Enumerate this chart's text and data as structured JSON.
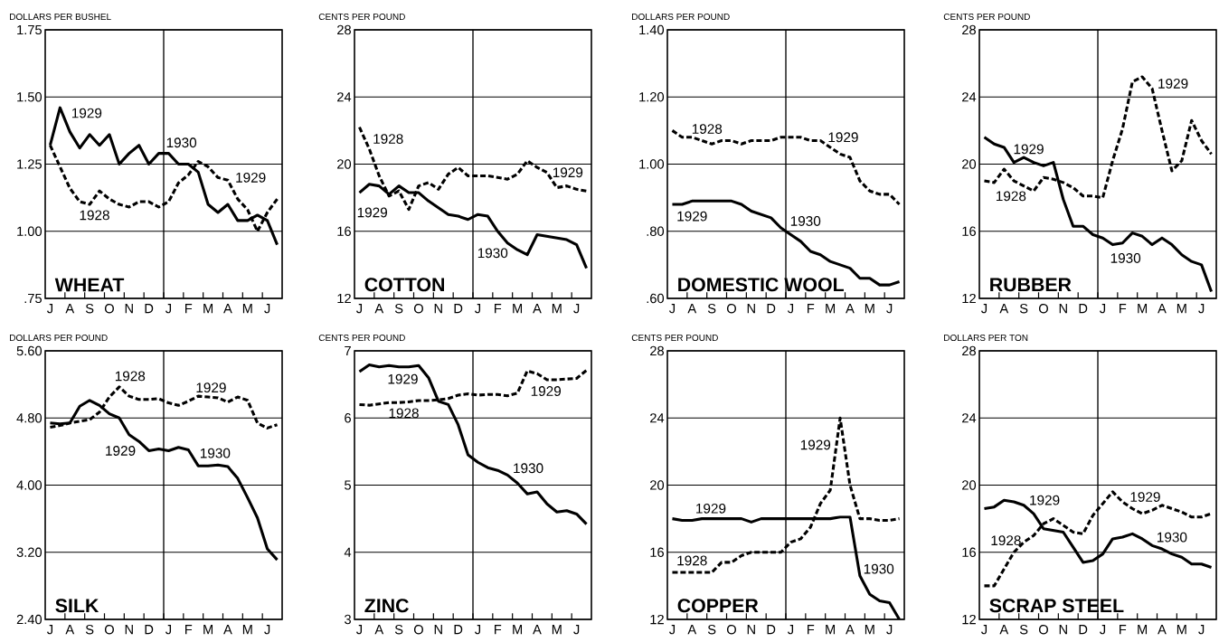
{
  "chart_data": [
    {
      "type": "line",
      "title": "WHEAT",
      "ylabel": "DOLLARS PER BUSHEL",
      "ylim": [
        0.75,
        1.75
      ],
      "grid": "y",
      "yticks": [
        {
          "value": 0.75,
          "label": ".75"
        },
        {
          "value": 1.0,
          "label": "1.00"
        },
        {
          "value": 1.25,
          "label": "1.25"
        },
        {
          "value": 1.5,
          "label": "1.50"
        },
        {
          "value": 1.75,
          "label": "1.75"
        }
      ],
      "categories": [
        "J",
        null,
        "A",
        null,
        "S",
        null,
        "O",
        null,
        "N",
        null,
        "D",
        null,
        "J",
        null,
        "F",
        null,
        "M",
        null,
        "A",
        null,
        "M",
        null,
        "J",
        null
      ],
      "series": [
        {
          "color": "#000000",
          "line_style": "solid",
          "values": [
            1.32,
            1.46,
            1.37,
            1.31,
            1.36,
            1.32,
            1.36,
            1.25,
            1.29,
            1.32,
            1.25,
            1.29,
            1.29,
            1.25,
            1.25,
            1.22,
            1.1,
            1.07,
            1.1,
            1.04,
            1.04,
            1.06,
            1.04,
            0.95
          ]
        },
        {
          "color": "#000000",
          "line_style": "dashed",
          "values": [
            1.32,
            1.24,
            1.16,
            1.11,
            1.1,
            1.15,
            1.12,
            1.1,
            1.09,
            1.11,
            1.11,
            1.09,
            1.11,
            1.18,
            1.21,
            1.26,
            1.24,
            1.2,
            1.19,
            1.12,
            1.08,
            1.0,
            1.07,
            1.12
          ]
        }
      ],
      "annotations": [
        "1929",
        "1930",
        "1929",
        "1928"
      ]
    },
    {
      "type": "line",
      "title": "COTTON",
      "ylabel": "CENTS PER POUND",
      "ylim": [
        12,
        28
      ],
      "grid": "y",
      "yticks": [
        12,
        16,
        20,
        24,
        28
      ],
      "categories": [
        "J",
        null,
        "A",
        null,
        "S",
        null,
        "O",
        null,
        "N",
        null,
        "D",
        null,
        "J",
        null,
        "F",
        null,
        "M",
        null,
        "A",
        null,
        "M",
        null,
        "J",
        null
      ],
      "series": [
        {
          "color": "#000000",
          "line_style": "solid",
          "values": [
            18.3,
            18.8,
            18.7,
            18.2,
            18.7,
            18.3,
            18.3,
            17.8,
            17.4,
            17.0,
            16.9,
            16.7,
            17.0,
            16.9,
            16.0,
            15.3,
            14.9,
            14.6,
            15.8,
            15.7,
            15.6,
            15.5,
            15.2,
            13.8
          ]
        },
        {
          "color": "#000000",
          "line_style": "dashed",
          "values": [
            22.2,
            20.9,
            19.3,
            18.1,
            18.4,
            17.3,
            18.7,
            18.9,
            18.5,
            19.4,
            19.8,
            19.3,
            19.3,
            19.3,
            19.2,
            19.1,
            19.4,
            20.2,
            19.8,
            19.5,
            18.6,
            18.7,
            18.5,
            18.4
          ]
        }
      ],
      "annotations": [
        "1928",
        "1929",
        "1930",
        "1929"
      ]
    },
    {
      "type": "line",
      "title": "DOMESTIC WOOL",
      "ylabel": "DOLLARS PER POUND",
      "ylim": [
        0.6,
        1.4
      ],
      "grid": "y",
      "yticks": [
        {
          "value": 0.6,
          "label": ".60"
        },
        {
          "value": 0.8,
          "label": ".80"
        },
        {
          "value": 1.0,
          "label": "1.00"
        },
        {
          "value": 1.2,
          "label": "1.20"
        },
        {
          "value": 1.4,
          "label": "1.40"
        }
      ],
      "categories": [
        "J",
        null,
        "A",
        null,
        "S",
        null,
        "O",
        null,
        "N",
        null,
        "D",
        null,
        "J",
        null,
        "F",
        null,
        "M",
        null,
        "A",
        null,
        "M",
        null,
        "J",
        null
      ],
      "series": [
        {
          "color": "#000000",
          "line_style": "solid",
          "values": [
            0.88,
            0.88,
            0.89,
            0.89,
            0.89,
            0.89,
            0.89,
            0.88,
            0.86,
            0.85,
            0.84,
            0.81,
            0.79,
            0.77,
            0.74,
            0.73,
            0.71,
            0.7,
            0.69,
            0.66,
            0.66,
            0.64,
            0.64,
            0.65
          ]
        },
        {
          "color": "#000000",
          "line_style": "dashed",
          "values": [
            1.1,
            1.08,
            1.08,
            1.07,
            1.06,
            1.07,
            1.07,
            1.06,
            1.07,
            1.07,
            1.07,
            1.08,
            1.08,
            1.08,
            1.07,
            1.07,
            1.05,
            1.03,
            1.02,
            0.95,
            0.92,
            0.91,
            0.91,
            0.88
          ]
        }
      ],
      "annotations": [
        "1928",
        "1929",
        "1930",
        "1929"
      ]
    },
    {
      "type": "line",
      "title": "RUBBER",
      "ylabel": "CENTS PER POUND",
      "ylim": [
        12,
        28
      ],
      "grid": "y",
      "yticks": [
        12,
        16,
        20,
        24,
        28
      ],
      "categories": [
        "J",
        null,
        "A",
        null,
        "S",
        null,
        "O",
        null,
        "N",
        null,
        "D",
        null,
        "J",
        null,
        "F",
        null,
        "M",
        null,
        "A",
        null,
        "M",
        null,
        "J",
        null
      ],
      "series": [
        {
          "color": "#000000",
          "line_style": "solid",
          "values": [
            21.6,
            21.2,
            21.0,
            20.1,
            20.4,
            20.1,
            19.9,
            20.1,
            17.9,
            16.3,
            16.3,
            15.8,
            15.6,
            15.2,
            15.3,
            15.9,
            15.7,
            15.2,
            15.6,
            15.2,
            14.6,
            14.2,
            14.0,
            12.4
          ]
        },
        {
          "color": "#000000",
          "line_style": "dashed",
          "values": [
            19.0,
            18.9,
            19.7,
            19.0,
            18.7,
            18.4,
            19.2,
            19.1,
            18.9,
            18.6,
            18.1,
            18.1,
            18.0,
            20.2,
            22.1,
            24.9,
            25.2,
            24.5,
            22.0,
            19.6,
            20.2,
            22.6,
            21.4,
            20.6
          ]
        }
      ],
      "annotations": [
        "1929",
        "1928",
        "1930",
        "1929"
      ]
    },
    {
      "type": "line",
      "title": "SILK",
      "ylabel": "DOLLARS PER POUND",
      "ylim": [
        2.4,
        5.6
      ],
      "grid": "y",
      "yticks": [
        {
          "value": 2.4,
          "label": "2.40"
        },
        {
          "value": 3.2,
          "label": "3.20"
        },
        {
          "value": 4.0,
          "label": "4.00"
        },
        {
          "value": 4.8,
          "label": "4.80"
        },
        {
          "value": 5.6,
          "label": "5.60"
        }
      ],
      "categories": [
        "J",
        null,
        "A",
        null,
        "S",
        null,
        "O",
        null,
        "N",
        null,
        "D",
        null,
        "J",
        null,
        "F",
        null,
        "M",
        null,
        "A",
        null,
        "M",
        null,
        "J",
        null
      ],
      "series": [
        {
          "color": "#000000",
          "line_style": "solid",
          "values": [
            4.74,
            4.73,
            4.74,
            4.94,
            5.01,
            4.95,
            4.85,
            4.8,
            4.6,
            4.52,
            4.41,
            4.43,
            4.41,
            4.45,
            4.42,
            4.23,
            4.23,
            4.24,
            4.22,
            4.08,
            3.85,
            3.61,
            3.24,
            3.11
          ]
        },
        {
          "color": "#000000",
          "line_style": "dashed",
          "values": [
            4.69,
            4.71,
            4.74,
            4.76,
            4.78,
            4.87,
            5.05,
            5.17,
            5.06,
            5.02,
            5.02,
            5.03,
            4.98,
            4.95,
            5.0,
            5.06,
            5.05,
            5.04,
            4.99,
            5.05,
            5.01,
            4.74,
            4.68,
            4.72
          ]
        }
      ],
      "annotations": [
        "1928",
        "1929",
        "1929",
        "1930"
      ]
    },
    {
      "type": "line",
      "title": "ZINC",
      "ylabel": "CENTS PER POUND",
      "ylim": [
        3,
        7
      ],
      "grid": "y",
      "yticks": [
        3,
        4,
        5,
        6,
        7
      ],
      "categories": [
        "J",
        null,
        "A",
        null,
        "S",
        null,
        "O",
        null,
        "N",
        null,
        "D",
        null,
        "J",
        null,
        "F",
        null,
        "M",
        null,
        "A",
        null,
        "M",
        null,
        "J",
        null
      ],
      "series": [
        {
          "color": "#000000",
          "line_style": "solid",
          "values": [
            6.69,
            6.79,
            6.76,
            6.78,
            6.76,
            6.76,
            6.78,
            6.6,
            6.25,
            6.2,
            5.9,
            5.45,
            5.34,
            5.26,
            5.22,
            5.15,
            5.03,
            4.87,
            4.9,
            4.72,
            4.6,
            4.62,
            4.57,
            4.42
          ]
        },
        {
          "color": "#000000",
          "line_style": "dashed",
          "values": [
            6.2,
            6.19,
            6.21,
            6.23,
            6.23,
            6.24,
            6.26,
            6.26,
            6.27,
            6.29,
            6.34,
            6.36,
            6.34,
            6.35,
            6.35,
            6.33,
            6.37,
            6.7,
            6.66,
            6.57,
            6.57,
            6.58,
            6.59,
            6.71
          ]
        }
      ],
      "annotations": [
        "1929",
        "1928",
        "1930",
        "1929"
      ]
    },
    {
      "type": "line",
      "title": "COPPER",
      "ylabel": "CENTS PER POUND",
      "ylim": [
        12,
        28
      ],
      "grid": "y",
      "yticks": [
        12,
        16,
        20,
        24,
        28
      ],
      "categories": [
        "J",
        null,
        "A",
        null,
        "S",
        null,
        "O",
        null,
        "N",
        null,
        "D",
        null,
        "J",
        null,
        "F",
        null,
        "M",
        null,
        "A",
        null,
        "M",
        null,
        "J",
        null
      ],
      "series": [
        {
          "color": "#000000",
          "line_style": "solid",
          "values": [
            18.0,
            17.9,
            17.9,
            18.0,
            18.0,
            18.0,
            18.0,
            18.0,
            17.8,
            18.0,
            18.0,
            18.0,
            18.0,
            18.0,
            18.0,
            18.0,
            18.0,
            18.1,
            18.1,
            14.6,
            13.5,
            13.1,
            13.0,
            12.0
          ]
        },
        {
          "color": "#000000",
          "line_style": "dashed",
          "values": [
            14.8,
            14.8,
            14.8,
            14.8,
            14.8,
            15.4,
            15.4,
            15.8,
            16.0,
            16.0,
            16.0,
            16.0,
            16.6,
            16.8,
            17.5,
            18.9,
            19.7,
            24.0,
            20.0,
            18.0,
            18.0,
            17.9,
            17.9,
            18.0
          ]
        }
      ],
      "annotations": [
        "1929",
        "1928",
        "1929",
        "1930"
      ]
    },
    {
      "type": "line",
      "title": "SCRAP STEEL",
      "ylabel": "DOLLARS PER TON",
      "ylim": [
        12,
        28
      ],
      "grid": "y",
      "yticks": [
        12,
        16,
        20,
        24,
        28
      ],
      "categories": [
        "J",
        null,
        "A",
        null,
        "S",
        null,
        "O",
        null,
        "N",
        null,
        "D",
        null,
        "J",
        null,
        "F",
        null,
        "M",
        null,
        "A",
        null,
        "M",
        null,
        "J",
        null
      ],
      "series": [
        {
          "color": "#000000",
          "line_style": "solid",
          "values": [
            18.6,
            18.7,
            19.1,
            19.0,
            18.8,
            18.3,
            17.4,
            17.3,
            17.2,
            16.3,
            15.4,
            15.5,
            15.9,
            16.8,
            16.9,
            17.1,
            16.8,
            16.4,
            16.2,
            15.9,
            15.7,
            15.3,
            15.3,
            15.1
          ]
        },
        {
          "color": "#000000",
          "line_style": "dashed",
          "values": [
            14.0,
            14.0,
            15.0,
            16.0,
            16.6,
            17.0,
            17.7,
            18.0,
            17.6,
            17.2,
            17.1,
            18.2,
            18.9,
            19.6,
            19.0,
            18.6,
            18.3,
            18.5,
            18.8,
            18.6,
            18.4,
            18.1,
            18.1,
            18.3
          ]
        }
      ],
      "annotations": [
        "1929",
        "1928",
        "1929",
        "1930"
      ]
    }
  ]
}
